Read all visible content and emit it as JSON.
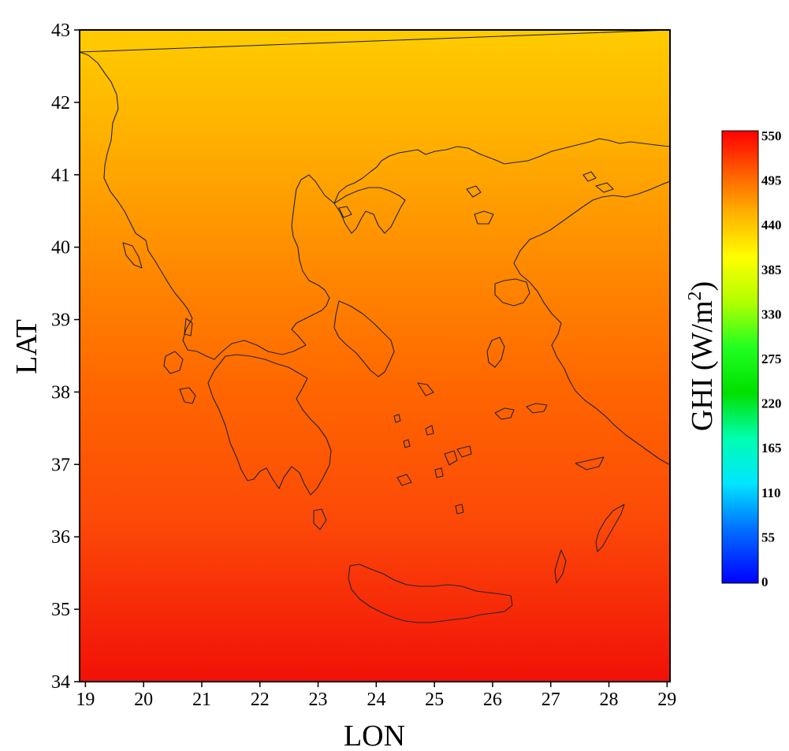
{
  "chart_data": {
    "type": "heatmap",
    "xlabel": "LON",
    "ylabel": "LAT",
    "xlim": [
      18.9,
      29.05
    ],
    "ylim": [
      34,
      43
    ],
    "x_ticks": [
      "19",
      "20",
      "21",
      "22",
      "23",
      "24",
      "25",
      "26",
      "27",
      "28",
      "29"
    ],
    "y_ticks": [
      "34",
      "35",
      "36",
      "37",
      "38",
      "39",
      "40",
      "41",
      "42",
      "43"
    ],
    "field": {
      "variable": "GHI",
      "gradient": "north-to-south",
      "value_at_north_edge": 455,
      "value_at_south_edge": 545
    },
    "colorbar": {
      "title_main": "GHI (W/m",
      "title_sup": "2",
      "title_close": ")",
      "min": 0,
      "max": 550,
      "ticks": [
        "550",
        "495",
        "440",
        "385",
        "330",
        "275",
        "220",
        "165",
        "110",
        "55",
        "0"
      ],
      "colors": [
        "#0000ff",
        "#0099ff",
        "#00ffff",
        "#00ff66",
        "#00dd00",
        "#33ff33",
        "#ffff00",
        "#ffd000",
        "#ff9900",
        "#ff5000",
        "#ff0000"
      ]
    },
    "coastline_color": "#222222",
    "grid": false,
    "legend": "right"
  }
}
